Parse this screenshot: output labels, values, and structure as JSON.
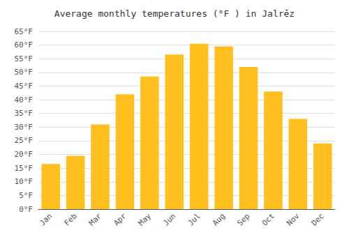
{
  "chart_data": {
    "type": "bar",
    "title": "Average monthly temperatures (°F ) in Jalrēz",
    "categories": [
      "Jan",
      "Feb",
      "Mar",
      "Apr",
      "May",
      "Jun",
      "Jul",
      "Aug",
      "Sep",
      "Oct",
      "Nov",
      "Dec"
    ],
    "values": [
      16.5,
      19.5,
      31.0,
      42.0,
      48.5,
      56.5,
      60.5,
      59.5,
      52.0,
      43.0,
      33.0,
      24.0
    ],
    "color": "#FFC020",
    "ylim": [
      0,
      65
    ],
    "yticks": [
      {
        "value": 0,
        "label": "0°F"
      },
      {
        "value": 5,
        "label": "5°F"
      },
      {
        "value": 10,
        "label": "10°F"
      },
      {
        "value": 15,
        "label": "15°F"
      },
      {
        "value": 20,
        "label": "20°F"
      },
      {
        "value": 25,
        "label": "25°F"
      },
      {
        "value": 30,
        "label": "30°F"
      },
      {
        "value": 35,
        "label": "35°F"
      },
      {
        "value": 40,
        "label": "40°F"
      },
      {
        "value": 45,
        "label": "45°F"
      },
      {
        "value": 50,
        "label": "50°F"
      },
      {
        "value": 55,
        "label": "55°F"
      },
      {
        "value": 60,
        "label": "60°F"
      },
      {
        "value": 65,
        "label": "65°F"
      }
    ],
    "grid": true
  }
}
